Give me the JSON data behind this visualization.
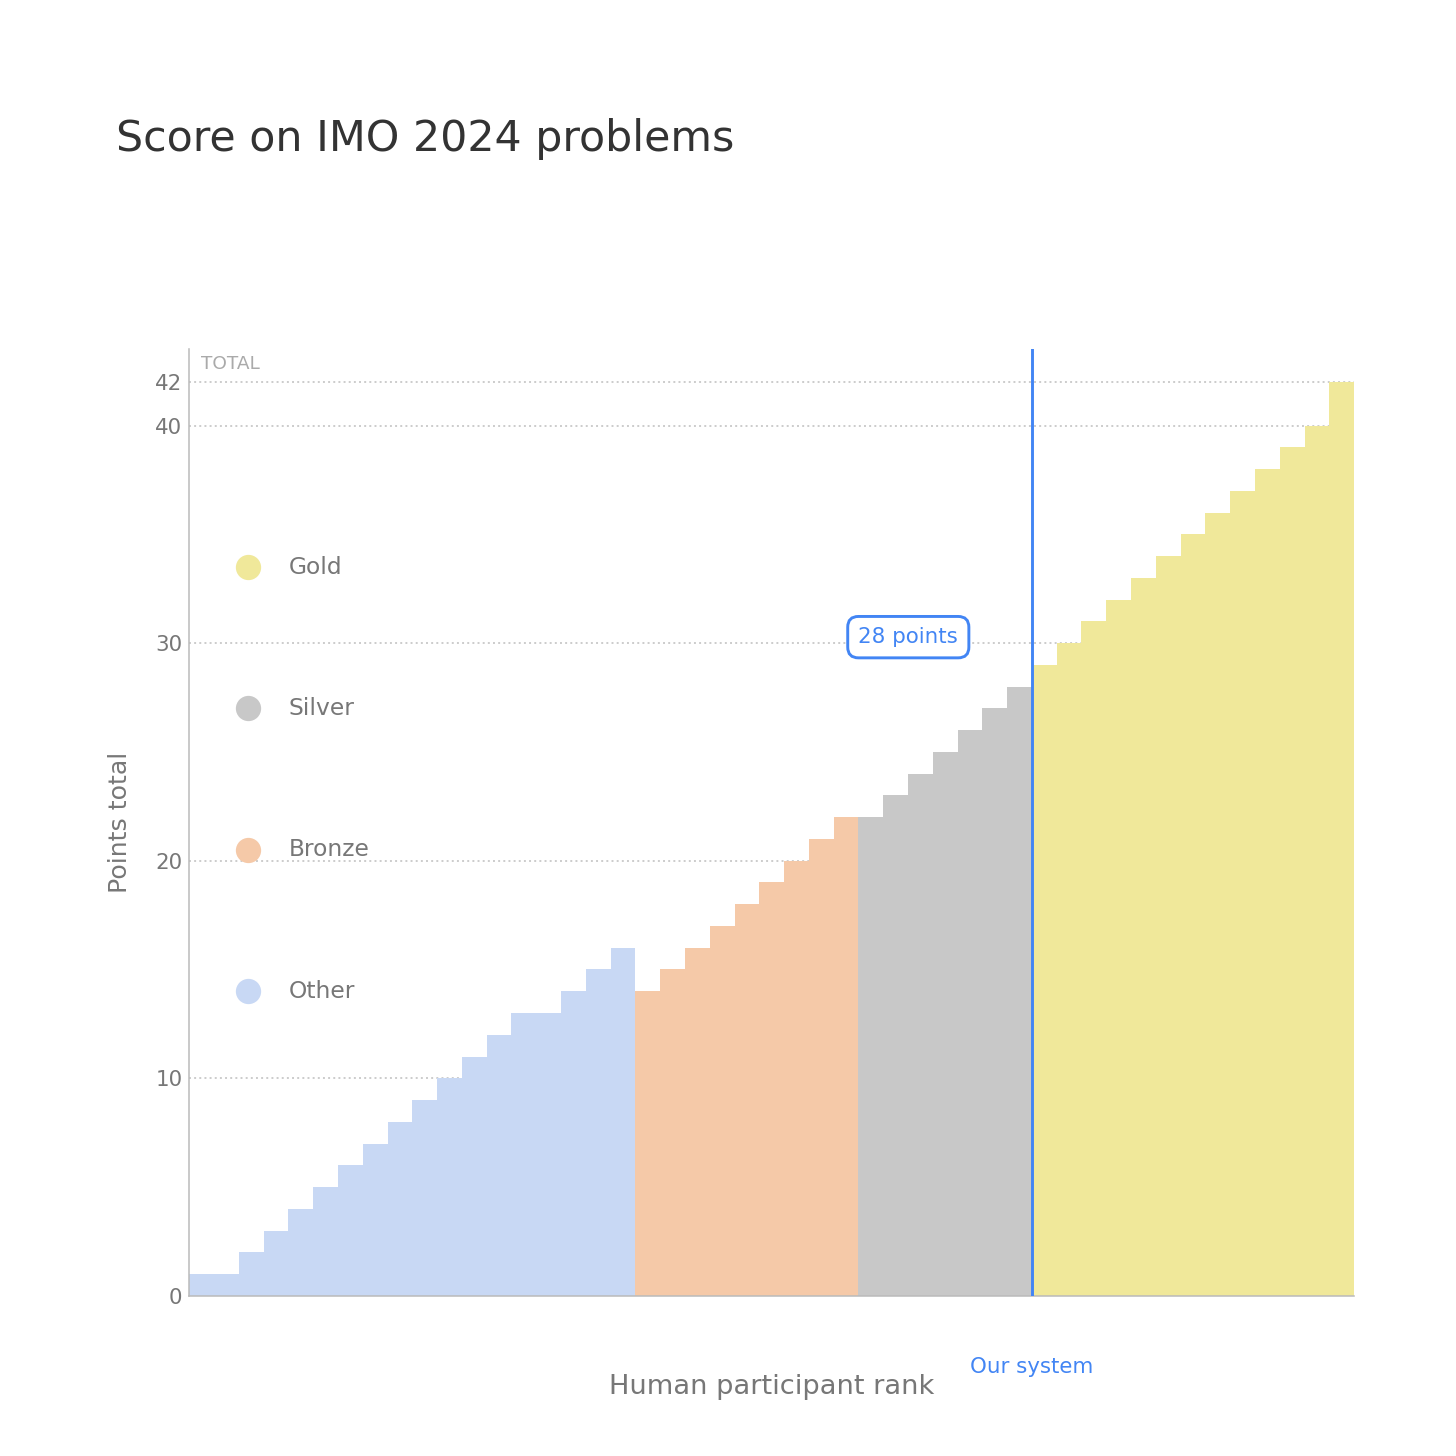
{
  "title": "Score on IMO 2024 problems",
  "xlabel": "Human participant rank",
  "ylabel": "Points total",
  "total_label": "TOTAL",
  "our_system_score": 28,
  "our_system_label": "Our system",
  "points_label": "28 points",
  "colors": {
    "other": "#c8d8f4",
    "bronze": "#f5c9a8",
    "silver": "#c8c8c8",
    "gold": "#f0e89a",
    "our_system_line": "#4285f4",
    "our_system_box_bg": "#ffffff",
    "our_system_box_border": "#4285f4",
    "our_system_text": "#4285f4",
    "grid": "#cccccc",
    "axis": "#bbbbbb",
    "text": "#777777",
    "title_text": "#333333",
    "total_text": "#aaaaaa"
  },
  "ylim": [
    0,
    43.5
  ],
  "background_color": "#ffffff",
  "font_family": "DejaVu Sans",
  "other_scores": [
    1,
    1,
    2,
    3,
    4,
    5,
    6,
    7,
    8,
    9,
    10,
    11,
    12,
    13,
    13,
    14,
    15,
    16
  ],
  "bronze_scores": [
    14,
    15,
    16,
    17,
    18,
    19,
    20,
    21,
    22
  ],
  "silver_scores": [
    22,
    23,
    24,
    25,
    26,
    27,
    28
  ],
  "gold_scores": [
    29,
    30,
    31,
    32,
    33,
    34,
    35,
    36,
    37,
    38,
    39,
    40,
    42
  ],
  "legend_items": [
    {
      "label": "Gold",
      "color": "#f0e89a"
    },
    {
      "label": "Silver",
      "color": "#c8c8c8"
    },
    {
      "label": "Bronze",
      "color": "#f5c9a8"
    },
    {
      "label": "Other",
      "color": "#c8d8f4"
    }
  ]
}
